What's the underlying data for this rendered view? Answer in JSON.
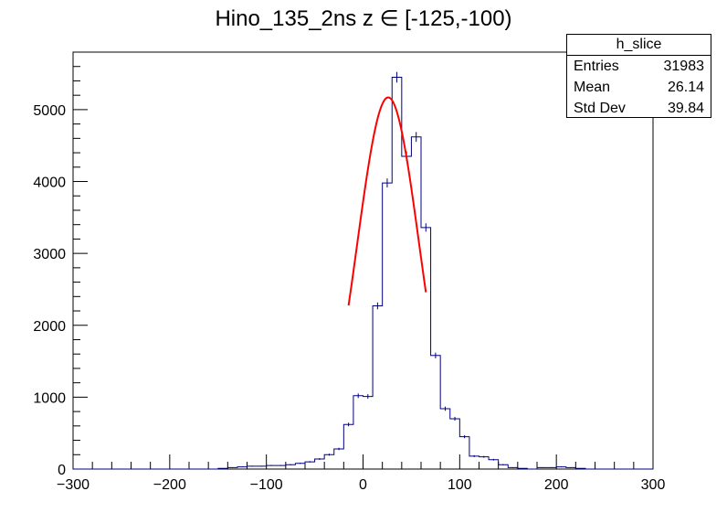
{
  "chart_data": {
    "type": "bar",
    "title": "Hino_135_2ns z  ∈ [-125,-100)",
    "xlabel": "",
    "ylabel": "",
    "xlim": [
      -300,
      300
    ],
    "ylim": [
      0,
      5800
    ],
    "xticks": [
      -300,
      -200,
      -100,
      0,
      100,
      200,
      300
    ],
    "yticks": [
      0,
      1000,
      2000,
      3000,
      4000,
      5000
    ],
    "bin_width": 10,
    "bin_edges_start": -300,
    "values": [
      0,
      0,
      0,
      0,
      0,
      0,
      0,
      0,
      0,
      0,
      0,
      0,
      0,
      0,
      0,
      10,
      20,
      30,
      40,
      40,
      50,
      50,
      60,
      80,
      100,
      140,
      200,
      280,
      620,
      1020,
      1010,
      2270,
      3980,
      5450,
      4350,
      4620,
      3360,
      1580,
      840,
      700,
      450,
      180,
      170,
      130,
      60,
      20,
      10,
      0,
      20,
      20,
      30,
      20,
      10,
      0,
      0,
      0,
      0,
      0,
      0,
      0
    ],
    "fit": {
      "type": "gaussian",
      "amplitude": 5170,
      "mean": 26,
      "sigma": 32,
      "x_range": [
        -15,
        65
      ]
    },
    "colors": {
      "histogram": "#000080",
      "fit": "#ff0000",
      "axis": "#000000"
    }
  },
  "stats_box": {
    "name": "h_slice",
    "entries_label": "Entries",
    "entries_value": "31983",
    "mean_label": "Mean",
    "mean_value": "26.14",
    "stddev_label": "Std Dev",
    "stddev_value": "39.84"
  }
}
